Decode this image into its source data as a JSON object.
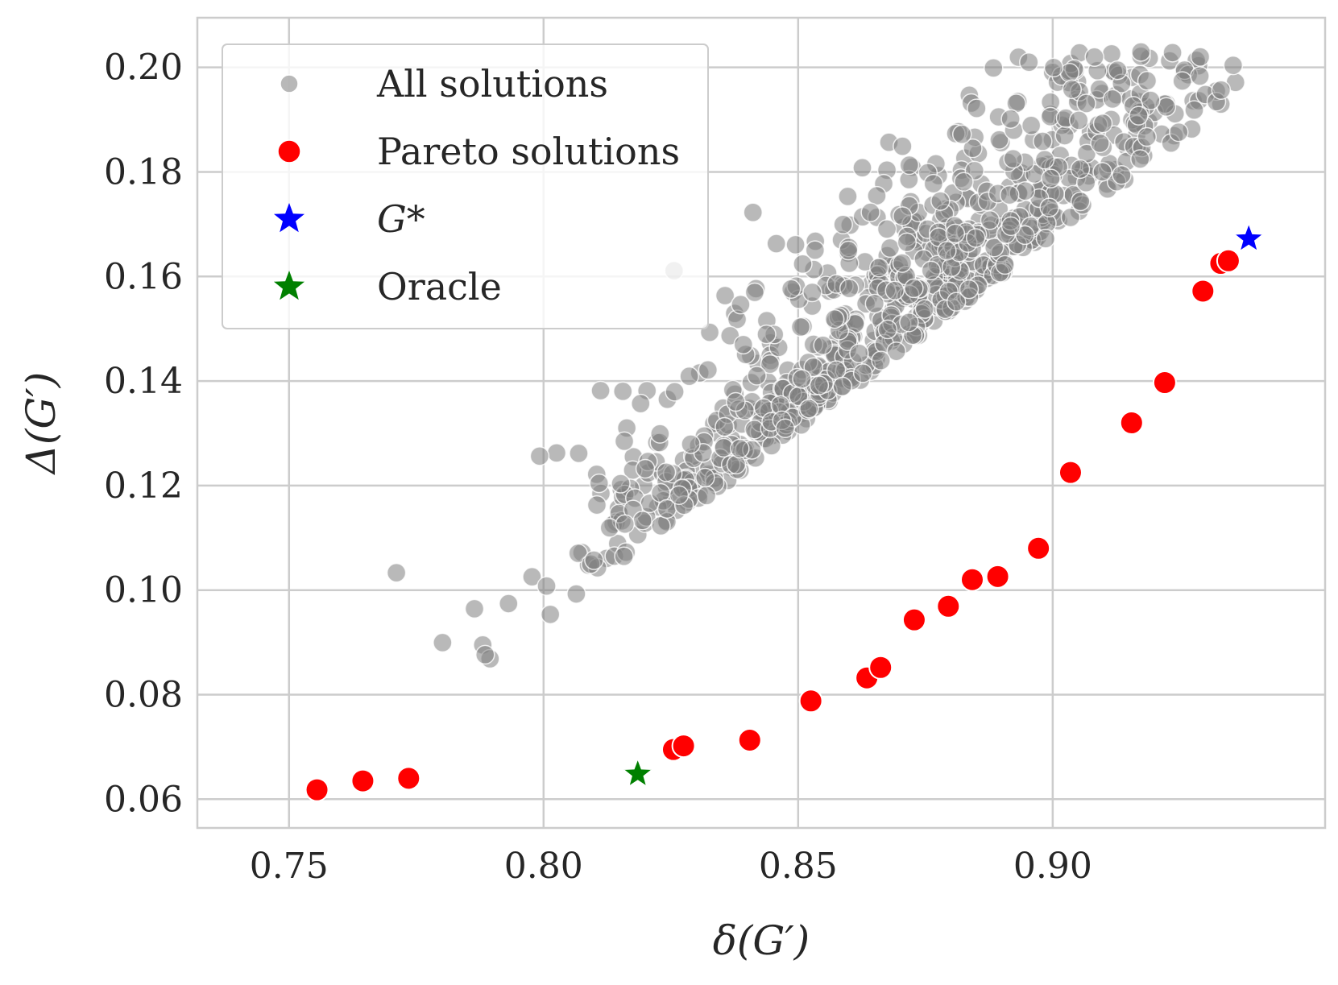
{
  "chart_data": {
    "type": "scatter",
    "xlabel": "δ(G′)",
    "ylabel": "Δ(G′)",
    "xlim": [
      0.732,
      0.9535
    ],
    "ylim": [
      0.0545,
      0.2095
    ],
    "xticks": [
      0.75,
      0.8,
      0.85,
      0.9
    ],
    "xtick_labels": [
      "0.75",
      "0.80",
      "0.85",
      "0.90"
    ],
    "yticks": [
      0.06,
      0.08,
      0.1,
      0.12,
      0.14,
      0.16,
      0.18,
      0.2
    ],
    "ytick_labels": [
      "0.06",
      "0.08",
      "0.10",
      "0.12",
      "0.14",
      "0.16",
      "0.18",
      "0.20"
    ],
    "grid": true,
    "legend_position": "top-left",
    "colors": {
      "all": "#808080",
      "pareto": "#ff0000",
      "gstar": "#0000ff",
      "oracle": "#008000",
      "grid": "#cccccc",
      "frame": "#cccccc"
    },
    "legend": [
      {
        "label": "All solutions",
        "marker": "circle",
        "color": "#a0a0a0"
      },
      {
        "label": "Pareto solutions",
        "marker": "circle",
        "color": "#ff0000"
      },
      {
        "label": "G*",
        "marker": "star",
        "color": "#0000ff",
        "italic": true
      },
      {
        "label": "Oracle",
        "marker": "star",
        "color": "#008000"
      }
    ],
    "series": [
      {
        "name": "Pareto solutions",
        "marker": "circle",
        "x": [
          0.7555,
          0.7645,
          0.7735,
          0.8255,
          0.8275,
          0.8405,
          0.8525,
          0.8635,
          0.8662,
          0.8728,
          0.8795,
          0.8842,
          0.8892,
          0.8972,
          0.9035,
          0.9155,
          0.922,
          0.9295,
          0.933,
          0.9345
        ],
        "y": [
          0.0618,
          0.0635,
          0.064,
          0.0695,
          0.0702,
          0.0713,
          0.0788,
          0.0832,
          0.0852,
          0.0943,
          0.0969,
          0.102,
          0.1026,
          0.108,
          0.1225,
          0.132,
          0.1397,
          0.1572,
          0.1625,
          0.163
        ]
      },
      {
        "name": "G*",
        "marker": "star",
        "x": [
          0.9385
        ],
        "y": [
          0.1672
        ]
      },
      {
        "name": "Oracle",
        "marker": "star",
        "x": [
          0.8185
        ],
        "y": [
          0.0648
        ]
      }
    ],
    "all_solutions_generator": {
      "count": 820,
      "seed": 7,
      "x_mean": 0.856,
      "x_sd": 0.036,
      "y_intercept": 0.117,
      "y_slope": 0.95,
      "y_noise_sd": 0.021
    }
  }
}
